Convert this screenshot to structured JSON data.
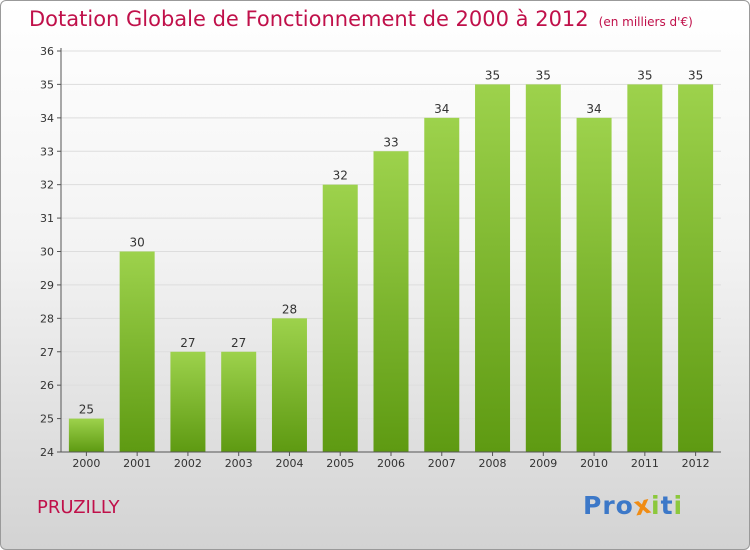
{
  "title": "Dotation Globale de Fonctionnement de 2000 à 2012",
  "unit": "(en milliers d'€)",
  "place": "PRUZILLY",
  "logo": {
    "text": "Proxiti",
    "letters": [
      {
        "ch": "P",
        "color": "#3c78c8"
      },
      {
        "ch": "r",
        "color": "#3c78c8"
      },
      {
        "ch": "o",
        "color": "#3c78c8"
      },
      {
        "ch": "x",
        "color": "#f08c14"
      },
      {
        "ch": "i",
        "color": "#8cc83c"
      },
      {
        "ch": "t",
        "color": "#3c78c8"
      },
      {
        "ch": "i",
        "color": "#8cc83c"
      }
    ]
  },
  "colors": {
    "title": "#c0104a",
    "bar_light": "#9dd24c",
    "bar_dark": "#5e9a12",
    "axis": "#555555",
    "grid": "#dddddd"
  },
  "chart_data": {
    "type": "bar",
    "categories": [
      "2000",
      "2001",
      "2002",
      "2003",
      "2004",
      "2005",
      "2006",
      "2007",
      "2008",
      "2009",
      "2010",
      "2011",
      "2012"
    ],
    "values": [
      25,
      30,
      27,
      27,
      28,
      32,
      33,
      34,
      35,
      35,
      34,
      35,
      35
    ],
    "ylim": [
      24,
      36
    ],
    "yticks": [
      24,
      25,
      26,
      27,
      28,
      29,
      30,
      31,
      32,
      33,
      34,
      35,
      36
    ],
    "grid": true,
    "legend": "none"
  }
}
